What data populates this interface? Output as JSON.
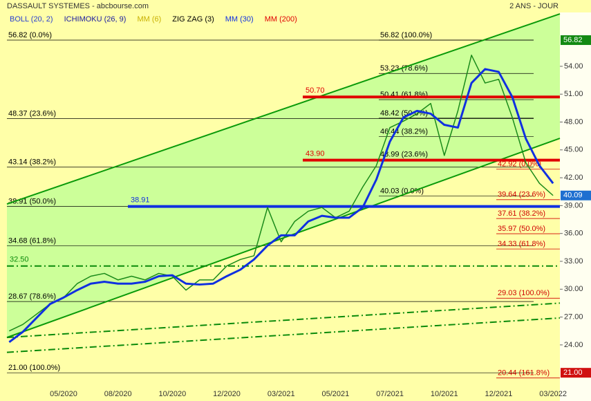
{
  "chart_data": {
    "type": "line",
    "title": "DASSAULT SYSTEMES - abcbourse.com",
    "period": "2 ANS - JOUR",
    "indicators": [
      {
        "name": "BOLL (20, 2)",
        "color": "#2a40d0"
      },
      {
        "name": "ICHIMOKU (26, 9)",
        "color": "#1a1aa0"
      },
      {
        "name": "MM (6)",
        "color": "#c8b000"
      },
      {
        "name": "ZIG ZAG (3)",
        "color": "#000000"
      },
      {
        "name": "MM (30)",
        "color": "#1030e0",
        "values": [
          24.3,
          25.4,
          26.9,
          28.4,
          29.1,
          29.9,
          30.6,
          30.8,
          30.6,
          30.6,
          30.8,
          31.4,
          31.5,
          30.6,
          30.5,
          30.6,
          31.4,
          32.1,
          33.2,
          34.7,
          35.8,
          35.8,
          37.3,
          37.9,
          37.7,
          37.7,
          38.8,
          41.8,
          45.9,
          48.5,
          49.2,
          48.9,
          47.7,
          47.4,
          52.2,
          53.7,
          53.4,
          50.7,
          46.2,
          43.3,
          41.4
        ]
      },
      {
        "name": "MM (200)",
        "color": "#e00000"
      }
    ],
    "price": {
      "color": "#1a8a1a",
      "values": [
        25.5,
        26.2,
        27.3,
        28.4,
        29.1,
        30.6,
        31.4,
        31.7,
        31.0,
        31.4,
        31.0,
        31.7,
        31.4,
        29.9,
        31.0,
        31.0,
        32.5,
        33.2,
        33.6,
        38.8,
        35.1,
        37.3,
        38.4,
        38.8,
        37.7,
        38.4,
        41.0,
        43.3,
        47.4,
        48.1,
        48.9,
        50.0,
        44.4,
        49.2,
        55.2,
        52.2,
        52.6,
        48.5,
        43.6,
        41.4,
        40.09
      ]
    },
    "categories": [
      null,
      null,
      null,
      null,
      "05/2020",
      null,
      null,
      null,
      "08/2020",
      null,
      null,
      null,
      "10/2020",
      null,
      null,
      null,
      "12/2020",
      null,
      null,
      null,
      "03/2021",
      null,
      null,
      null,
      "05/2021",
      null,
      null,
      null,
      "07/2021",
      null,
      null,
      null,
      "10/2021",
      null,
      null,
      null,
      "12/2021",
      null,
      null,
      null,
      "03/2022"
    ],
    "ylim": [
      19.3,
      59.8
    ],
    "yticks": [
      {
        "value": 24,
        "label": "24.00"
      },
      {
        "value": 27,
        "label": "27.00"
      },
      {
        "value": 30,
        "label": "30.00"
      },
      {
        "value": 33,
        "label": "33.00"
      },
      {
        "value": 36,
        "label": "36.00"
      },
      {
        "value": 39,
        "label": "39.00"
      },
      {
        "value": 42,
        "label": "42.00"
      },
      {
        "value": 45,
        "label": "45.00"
      },
      {
        "value": 48,
        "label": "48.00"
      },
      {
        "value": 51,
        "label": "51.00"
      },
      {
        "value": 54,
        "label": "54.00"
      }
    ],
    "trendlines": [
      {
        "values": [
          39.17,
          59.65
        ],
        "color": "#0a9a0a",
        "dash": "none"
      },
      {
        "values": [
          24.8,
          46.25
        ],
        "color": "#0a9a0a",
        "dash": "none"
      },
      {
        "values": [
          24.8,
          28.5
        ],
        "color": "#0a8a0a",
        "dash": "10 4 2 4"
      },
      {
        "values": [
          23.2,
          26.9
        ],
        "color": "#0a8a0a",
        "dash": "10 4 2 4"
      }
    ],
    "channel_fill": "#ccff99",
    "fib_groups": [
      {
        "color": "#000000",
        "levels": [
          {
            "value": 56.82,
            "label": "56.82  (0.0%)"
          },
          {
            "value": 48.37,
            "label": "48.37  (23.6%)"
          },
          {
            "value": 43.14,
            "label": "43.14  (38.2%)"
          },
          {
            "value": 38.91,
            "label": "38.91  (50.0%)"
          },
          {
            "value": 34.68,
            "label": "34.68  (61.8%)"
          },
          {
            "value": 28.67,
            "label": "28.67  (78.6%)"
          },
          {
            "value": 21.0,
            "label": "21.00  (100.0%)"
          }
        ]
      },
      {
        "color": "#000000",
        "levels": [
          {
            "value": 56.82,
            "label": "56.82  (100.0%)"
          },
          {
            "value": 53.23,
            "label": "53.23  (78.6%)"
          },
          {
            "value": 50.41,
            "label": "50.41  (61.8%)"
          },
          {
            "value": 48.42,
            "label": "48.42  (50.0%)"
          },
          {
            "value": 46.44,
            "label": "46.44  (38.2%)"
          },
          {
            "value": 43.99,
            "label": "43.99  (23.6%)"
          },
          {
            "value": 40.03,
            "label": "40.03  (0.0%)"
          }
        ]
      },
      {
        "color": "#d00000",
        "levels": [
          {
            "value": 42.92,
            "label": "42.92  (0.0%)"
          },
          {
            "value": 39.64,
            "label": "39.64  (23.6%)"
          },
          {
            "value": 37.61,
            "label": "37.61  (38.2%)"
          },
          {
            "value": 35.97,
            "label": "35.97  (50.0%)"
          },
          {
            "value": 34.33,
            "label": "34.33  (61.8%)"
          },
          {
            "value": 29.03,
            "label": "29.03  (100.0%)"
          },
          {
            "value": 20.44,
            "label": "20.44  (161.8%)"
          }
        ]
      }
    ],
    "hlines": [
      {
        "value": 50.7,
        "label": "50.70",
        "color": "#e00000",
        "width": 4,
        "dash": "none"
      },
      {
        "value": 43.9,
        "label": "43.90",
        "color": "#e00000",
        "width": 4,
        "dash": "none"
      },
      {
        "value": 38.91,
        "label": "38.91",
        "color": "#1030e0",
        "width": 4,
        "dash": "none"
      },
      {
        "value": 32.5,
        "label": "32.50",
        "color": "#0a8a0a",
        "width": 2,
        "dash": "10 4 2 4"
      }
    ],
    "price_tags": [
      {
        "value": 56.82,
        "label": "56.82",
        "color": "#138a13"
      },
      {
        "value": 40.09,
        "label": "40.09",
        "color": "#1e6fd0"
      },
      {
        "value": 21.0,
        "label": "21.00",
        "color": "#d01010"
      }
    ]
  }
}
